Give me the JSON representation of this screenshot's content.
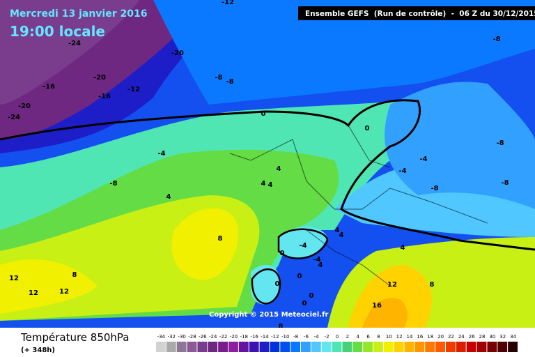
{
  "header": {
    "date": "Mercredi 13 janvier 2016",
    "time": "19:00 locale",
    "model": "Ensemble GEFS  (Run de contrôle)  -  06 Z du 30/12/2015"
  },
  "copyright": "Copyright © 2015 Meteociel.fr",
  "footer": {
    "title": "Température 850hPa",
    "lead": "(+ 348h)"
  },
  "contour_labels": [
    -12,
    -24,
    -20,
    -8,
    -20,
    -8,
    -8,
    -16,
    -12,
    -16,
    -20,
    -24,
    0,
    0,
    -8,
    -4,
    -4,
    -4,
    4,
    -8,
    4,
    4,
    -8,
    -8,
    4,
    4,
    4,
    8,
    -4,
    0,
    4,
    -4,
    4,
    8,
    0,
    12,
    0,
    12,
    8,
    12,
    12,
    0,
    0,
    16,
    8
  ],
  "legend": {
    "values": [
      -34,
      -32,
      -30,
      -28,
      -26,
      -24,
      -22,
      -20,
      -18,
      -16,
      -14,
      -12,
      -10,
      -8,
      -6,
      -4,
      -2,
      0,
      2,
      4,
      6,
      8,
      10,
      12,
      14,
      16,
      18,
      20,
      22,
      24,
      26,
      28,
      30,
      32,
      34
    ],
    "colors": [
      "#d2d2d2",
      "#aaaaaa",
      "#8c7896",
      "#8c5a96",
      "#7a3c8c",
      "#6e2882",
      "#7a1e8c",
      "#8c1ea0",
      "#6414a0",
      "#3c14b4",
      "#1e1ec8",
      "#0032dc",
      "#0050f0",
      "#0a78ff",
      "#32a0ff",
      "#50c8ff",
      "#64e6f0",
      "#50e6b4",
      "#46d278",
      "#64dc46",
      "#96e628",
      "#c8f014",
      "#f0f000",
      "#ffd200",
      "#ffb400",
      "#ff9600",
      "#ff7800",
      "#ff5a00",
      "#f03c00",
      "#dc1e00",
      "#c80000",
      "#a00000",
      "#780000",
      "#500000",
      "#280000"
    ]
  }
}
